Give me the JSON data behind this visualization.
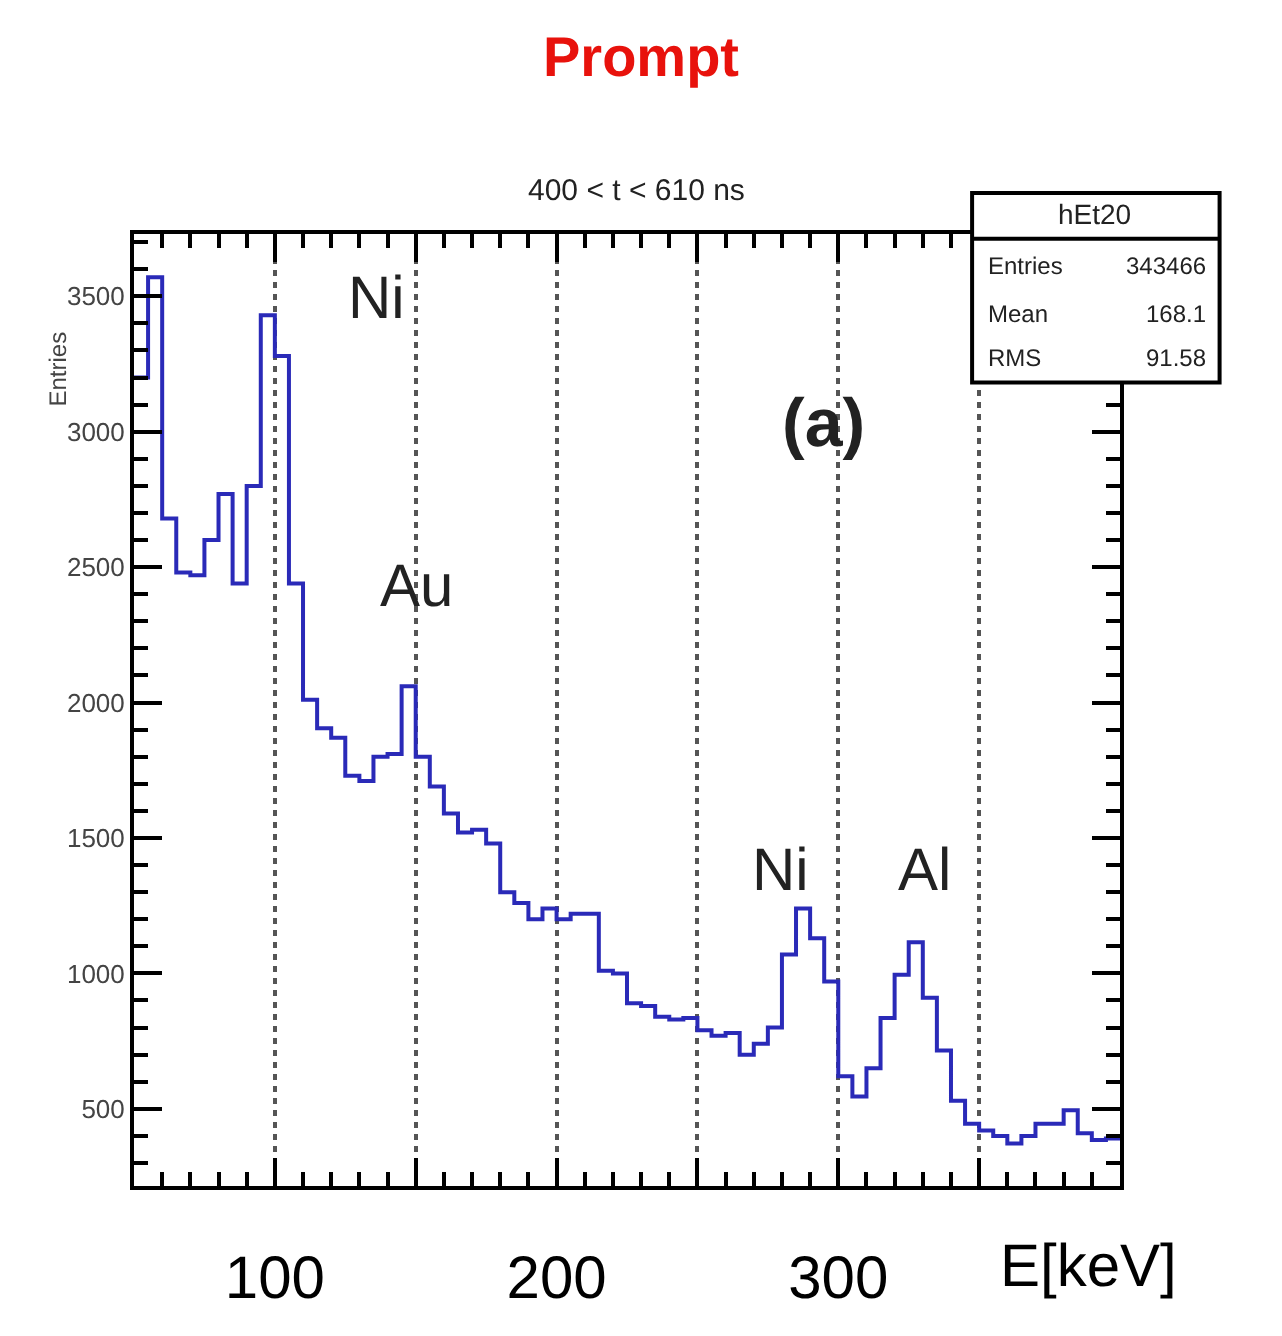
{
  "chart_data": {
    "type": "histogram",
    "title": "Prompt",
    "subtitle": "400 < t < 610 ns",
    "xlabel": "E[keV]",
    "ylabel": "Entries",
    "bins": [
      50,
      55,
      60,
      65,
      70,
      75,
      80,
      85,
      90,
      95,
      100,
      105,
      110,
      115,
      120,
      125,
      130,
      135,
      140,
      145,
      150,
      155,
      160,
      165,
      170,
      175,
      180,
      185,
      190,
      195,
      200,
      205,
      210,
      215,
      220,
      225,
      230,
      235,
      240,
      245,
      250,
      255,
      260,
      265,
      270,
      275,
      280,
      285,
      290,
      295,
      300,
      305,
      310,
      315,
      320,
      325,
      330,
      335,
      340,
      345,
      350,
      355,
      360,
      365,
      370,
      375,
      380,
      385,
      390,
      395,
      400
    ],
    "values": [
      3200,
      3570,
      2680,
      2480,
      2470,
      2600,
      2770,
      2440,
      2800,
      3430,
      3280,
      2440,
      2010,
      1905,
      1870,
      1730,
      1710,
      1800,
      1810,
      2060,
      1800,
      1690,
      1590,
      1520,
      1530,
      1480,
      1300,
      1260,
      1200,
      1240,
      1200,
      1220,
      1220,
      1010,
      1000,
      890,
      880,
      840,
      830,
      835,
      790,
      770,
      780,
      700,
      740,
      800,
      1070,
      1240,
      1130,
      970,
      620,
      545,
      650,
      835,
      995,
      1115,
      910,
      715,
      530,
      445,
      420,
      400,
      372,
      400,
      445,
      445,
      495,
      410,
      385,
      390
    ],
    "color": "#2a2ab8",
    "xlim": [
      50,
      400
    ],
    "ylim": [
      215,
      3730
    ],
    "xticks": [
      {
        "value": 100,
        "label": "100"
      },
      {
        "value": 150,
        "label": null
      },
      {
        "value": 200,
        "label": "200"
      },
      {
        "value": 250,
        "label": null
      },
      {
        "value": 300,
        "label": "300"
      },
      {
        "value": 350,
        "label": null
      }
    ],
    "yticks": [
      500,
      1000,
      1500,
      2000,
      2500,
      3000,
      3500
    ],
    "grid": "x",
    "annotations": [
      "Ni",
      "Au",
      "Ni",
      "Al",
      "(a)",
      "hEt20",
      "Entries",
      "343466",
      "Mean",
      "168.1",
      "RMS",
      "91.58"
    ]
  }
}
